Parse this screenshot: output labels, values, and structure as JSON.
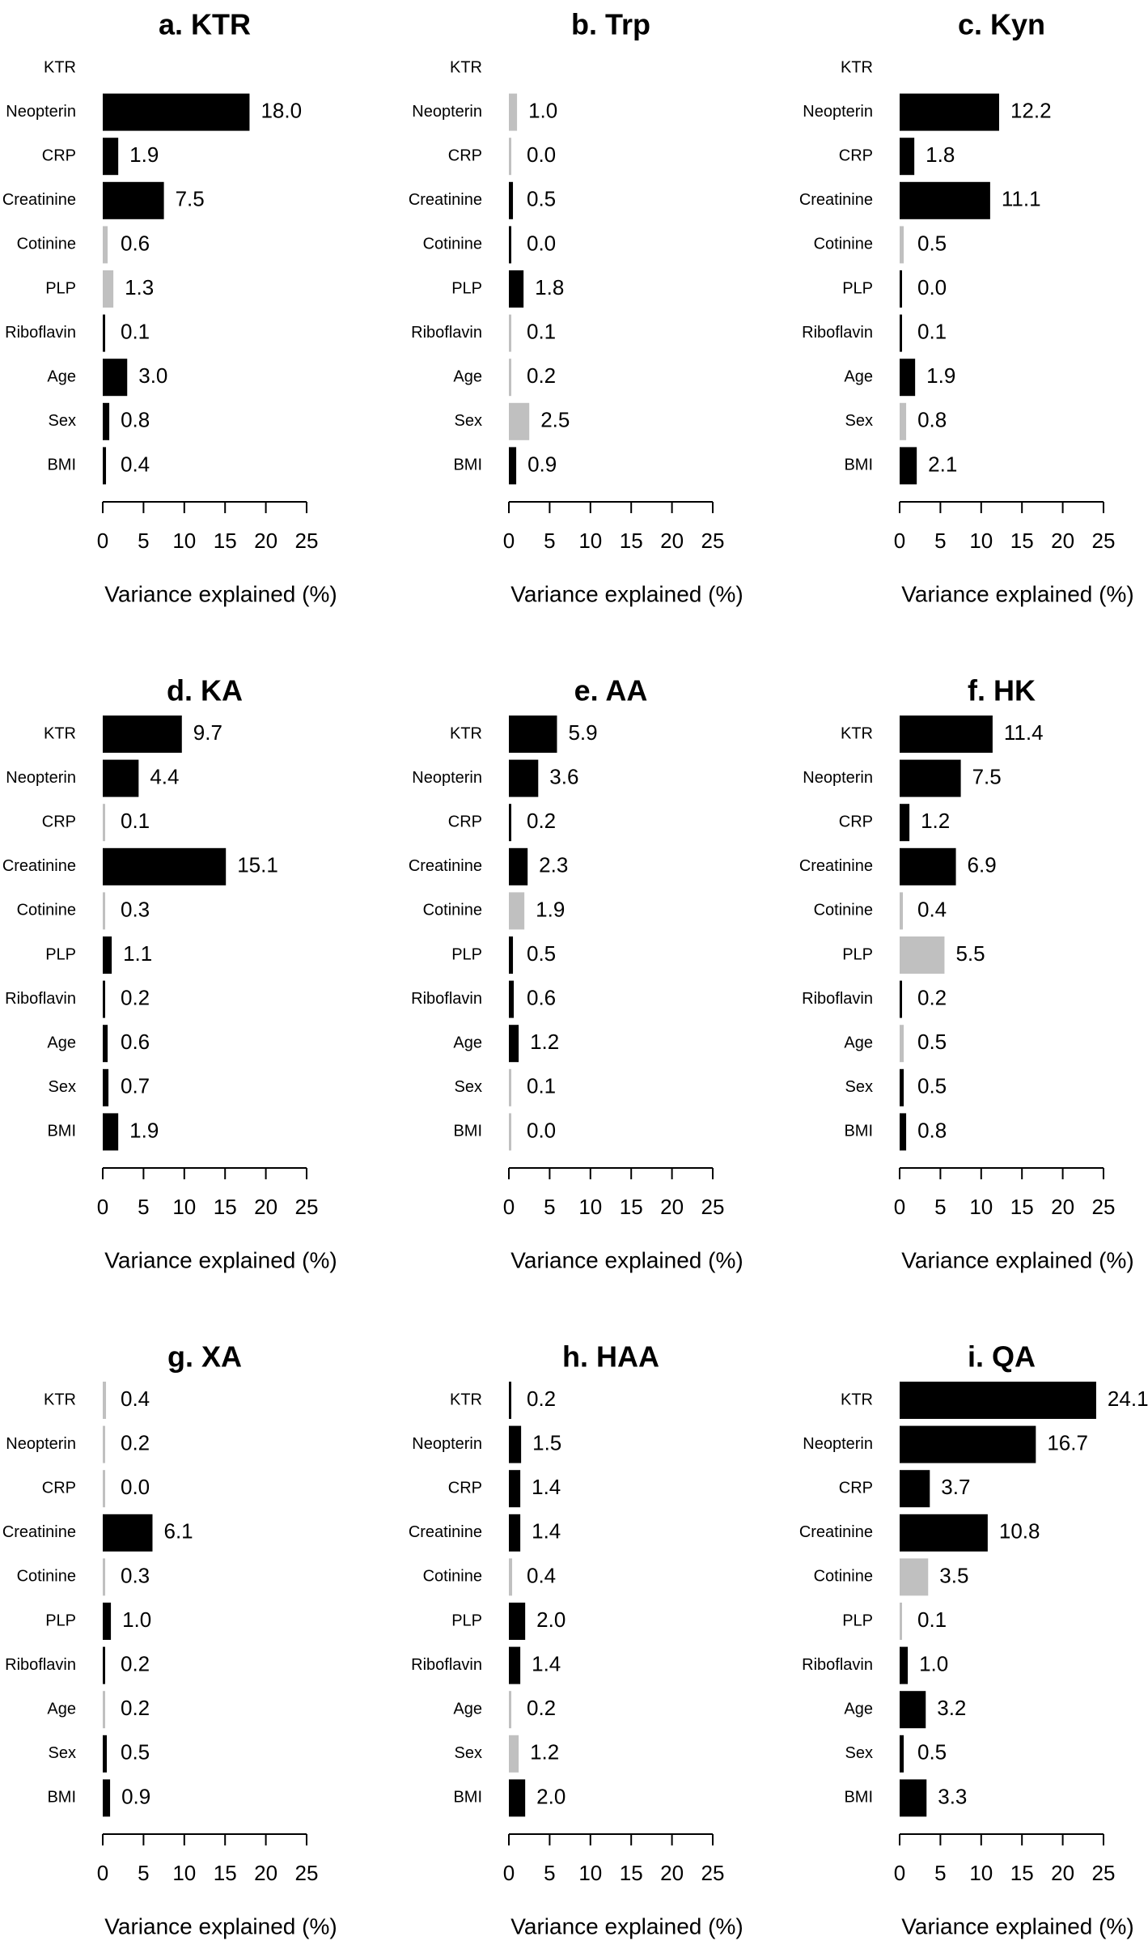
{
  "colors": {
    "significant": "#000000",
    "nonsignificant": "#c0c0c0"
  },
  "chart_data": [
    {
      "type": "bar",
      "title": "a. KTR",
      "xlabel": "Variance explained (%)",
      "xlim": [
        0,
        25
      ],
      "xticks": [
        0,
        5,
        10,
        15,
        20,
        25
      ],
      "categories": [
        "KTR",
        "Neopterin",
        "CRP",
        "Creatinine",
        "Cotinine",
        "PLP",
        "Riboflavin",
        "Age",
        "Sex",
        "BMI"
      ],
      "values": [
        null,
        18.0,
        1.9,
        7.5,
        0.6,
        1.3,
        0.1,
        3.0,
        0.8,
        0.4
      ],
      "labels": [
        "",
        "18.0",
        "1.9",
        "7.5",
        "0.6",
        "1.3",
        "0.1",
        "3.0",
        "0.8",
        "0.4"
      ],
      "colors": [
        "",
        "black",
        "black",
        "black",
        "gray",
        "gray",
        "black",
        "black",
        "black",
        "black"
      ]
    },
    {
      "type": "bar",
      "title": "b. Trp",
      "xlabel": "Variance explained (%)",
      "xlim": [
        0,
        25
      ],
      "xticks": [
        0,
        5,
        10,
        15,
        20,
        25
      ],
      "categories": [
        "KTR",
        "Neopterin",
        "CRP",
        "Creatinine",
        "Cotinine",
        "PLP",
        "Riboflavin",
        "Age",
        "Sex",
        "BMI"
      ],
      "values": [
        null,
        1.0,
        0.0,
        0.5,
        0.0,
        1.8,
        0.1,
        0.2,
        2.5,
        0.9
      ],
      "labels": [
        "",
        "1.0",
        "0.0",
        "0.5",
        "0.0",
        "1.8",
        "0.1",
        "0.2",
        "2.5",
        "0.9"
      ],
      "colors": [
        "",
        "gray",
        "gray",
        "black",
        "black",
        "black",
        "gray",
        "gray",
        "gray",
        "black"
      ]
    },
    {
      "type": "bar",
      "title": "c. Kyn",
      "xlabel": "Variance explained (%)",
      "xlim": [
        0,
        25
      ],
      "xticks": [
        0,
        5,
        10,
        15,
        20,
        25
      ],
      "categories": [
        "KTR",
        "Neopterin",
        "CRP",
        "Creatinine",
        "Cotinine",
        "PLP",
        "Riboflavin",
        "Age",
        "Sex",
        "BMI"
      ],
      "values": [
        null,
        12.2,
        1.8,
        11.1,
        0.5,
        0.0,
        0.1,
        1.9,
        0.8,
        2.1
      ],
      "labels": [
        "",
        "12.2",
        "1.8",
        "11.1",
        "0.5",
        "0.0",
        "0.1",
        "1.9",
        "0.8",
        "2.1"
      ],
      "colors": [
        "",
        "black",
        "black",
        "black",
        "gray",
        "black",
        "black",
        "black",
        "gray",
        "black"
      ]
    },
    {
      "type": "bar",
      "title": "d. KA",
      "xlabel": "Variance explained (%)",
      "xlim": [
        0,
        25
      ],
      "xticks": [
        0,
        5,
        10,
        15,
        20,
        25
      ],
      "categories": [
        "KTR",
        "Neopterin",
        "CRP",
        "Creatinine",
        "Cotinine",
        "PLP",
        "Riboflavin",
        "Age",
        "Sex",
        "BMI"
      ],
      "values": [
        9.7,
        4.4,
        0.1,
        15.1,
        0.3,
        1.1,
        0.2,
        0.6,
        0.7,
        1.9
      ],
      "labels": [
        "9.7",
        "4.4",
        "0.1",
        "15.1",
        "0.3",
        "1.1",
        "0.2",
        "0.6",
        "0.7",
        "1.9"
      ],
      "colors": [
        "black",
        "black",
        "gray",
        "black",
        "gray",
        "black",
        "black",
        "black",
        "black",
        "black"
      ]
    },
    {
      "type": "bar",
      "title": "e. AA",
      "xlabel": "Variance explained (%)",
      "xlim": [
        0,
        25
      ],
      "xticks": [
        0,
        5,
        10,
        15,
        20,
        25
      ],
      "categories": [
        "KTR",
        "Neopterin",
        "CRP",
        "Creatinine",
        "Cotinine",
        "PLP",
        "Riboflavin",
        "Age",
        "Sex",
        "BMI"
      ],
      "values": [
        5.9,
        3.6,
        0.2,
        2.3,
        1.9,
        0.5,
        0.6,
        1.2,
        0.1,
        0.0
      ],
      "labels": [
        "5.9",
        "3.6",
        "0.2",
        "2.3",
        "1.9",
        "0.5",
        "0.6",
        "1.2",
        "0.1",
        "0.0"
      ],
      "colors": [
        "black",
        "black",
        "black",
        "black",
        "gray",
        "black",
        "black",
        "black",
        "gray",
        "gray"
      ]
    },
    {
      "type": "bar",
      "title": "f. HK",
      "xlabel": "Variance explained (%)",
      "xlim": [
        0,
        25
      ],
      "xticks": [
        0,
        5,
        10,
        15,
        20,
        25
      ],
      "categories": [
        "KTR",
        "Neopterin",
        "CRP",
        "Creatinine",
        "Cotinine",
        "PLP",
        "Riboflavin",
        "Age",
        "Sex",
        "BMI"
      ],
      "values": [
        11.4,
        7.5,
        1.2,
        6.9,
        0.4,
        5.5,
        0.2,
        0.5,
        0.5,
        0.8
      ],
      "labels": [
        "11.4",
        "7.5",
        "1.2",
        "6.9",
        "0.4",
        "5.5",
        "0.2",
        "0.5",
        "0.5",
        "0.8"
      ],
      "colors": [
        "black",
        "black",
        "black",
        "black",
        "gray",
        "gray",
        "black",
        "gray",
        "black",
        "black"
      ]
    },
    {
      "type": "bar",
      "title": "g. XA",
      "xlabel": "Variance explained (%)",
      "xlim": [
        0,
        25
      ],
      "xticks": [
        0,
        5,
        10,
        15,
        20,
        25
      ],
      "categories": [
        "KTR",
        "Neopterin",
        "CRP",
        "Creatinine",
        "Cotinine",
        "PLP",
        "Riboflavin",
        "Age",
        "Sex",
        "BMI"
      ],
      "values": [
        0.4,
        0.2,
        0.0,
        6.1,
        0.3,
        1.0,
        0.2,
        0.2,
        0.5,
        0.9
      ],
      "labels": [
        "0.4",
        "0.2",
        "0.0",
        "6.1",
        "0.3",
        "1.0",
        "0.2",
        "0.2",
        "0.5",
        "0.9"
      ],
      "colors": [
        "gray",
        "gray",
        "gray",
        "black",
        "gray",
        "black",
        "black",
        "gray",
        "black",
        "black"
      ]
    },
    {
      "type": "bar",
      "title": "h. HAA",
      "xlabel": "Variance explained (%)",
      "xlim": [
        0,
        25
      ],
      "xticks": [
        0,
        5,
        10,
        15,
        20,
        25
      ],
      "categories": [
        "KTR",
        "Neopterin",
        "CRP",
        "Creatinine",
        "Cotinine",
        "PLP",
        "Riboflavin",
        "Age",
        "Sex",
        "BMI"
      ],
      "values": [
        0.2,
        1.5,
        1.4,
        1.4,
        0.4,
        2.0,
        1.4,
        0.2,
        1.2,
        2.0
      ],
      "labels": [
        "0.2",
        "1.5",
        "1.4",
        "1.4",
        "0.4",
        "2.0",
        "1.4",
        "0.2",
        "1.2",
        "2.0"
      ],
      "colors": [
        "black",
        "black",
        "black",
        "black",
        "gray",
        "black",
        "black",
        "gray",
        "gray",
        "black"
      ]
    },
    {
      "type": "bar",
      "title": "i. QA",
      "xlabel": "Variance explained (%)",
      "xlim": [
        0,
        25
      ],
      "xticks": [
        0,
        5,
        10,
        15,
        20,
        25
      ],
      "categories": [
        "KTR",
        "Neopterin",
        "CRP",
        "Creatinine",
        "Cotinine",
        "PLP",
        "Riboflavin",
        "Age",
        "Sex",
        "BMI"
      ],
      "values": [
        24.1,
        16.7,
        3.7,
        10.8,
        3.5,
        0.1,
        1.0,
        3.2,
        0.5,
        3.3
      ],
      "labels": [
        "24.1",
        "16.7",
        "3.7",
        "10.8",
        "3.5",
        "0.1",
        "1.0",
        "3.2",
        "0.5",
        "3.3"
      ],
      "colors": [
        "black",
        "black",
        "black",
        "black",
        "gray",
        "gray",
        "black",
        "black",
        "black",
        "black"
      ]
    }
  ]
}
